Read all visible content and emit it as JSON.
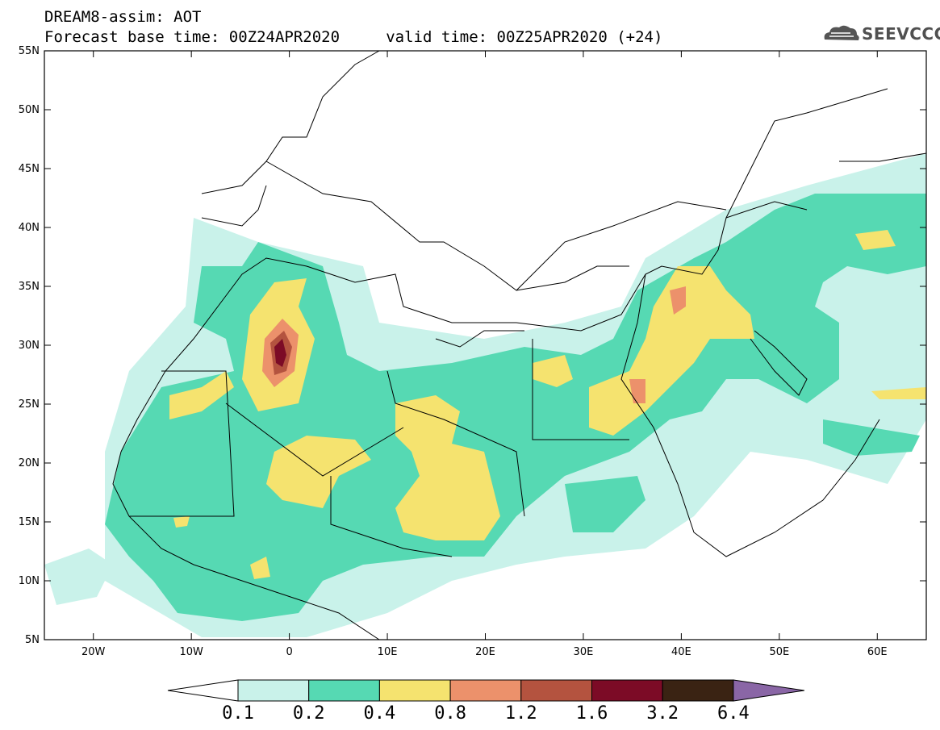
{
  "header": {
    "title": "DREAM8-assim: AOT",
    "forecast_line": "Forecast base time: 00Z24APR2020     valid time: 00Z25APR2020 (+24)"
  },
  "logo": {
    "text": "SEEVCCC",
    "icon": "cloud-icon"
  },
  "map": {
    "lat_labels": [
      "55N",
      "50N",
      "45N",
      "40N",
      "35N",
      "30N",
      "25N",
      "20N",
      "15N",
      "10N",
      "5N"
    ],
    "lon_labels": [
      "20W",
      "10W",
      "0",
      "10E",
      "20E",
      "30E",
      "40E",
      "50E",
      "60E"
    ],
    "lat_range": [
      5,
      55
    ],
    "lon_range": [
      -25,
      65
    ]
  },
  "legend": {
    "values": [
      "0.1",
      "0.2",
      "0.4",
      "0.8",
      "1.2",
      "1.6",
      "3.2",
      "6.4"
    ],
    "colors": [
      "#ffffff",
      "#c9f2ea",
      "#56d9b3",
      "#f5e36f",
      "#ec916b",
      "#b4533f",
      "#7c0b26",
      "#3a2313",
      "#8a66a6"
    ]
  }
}
